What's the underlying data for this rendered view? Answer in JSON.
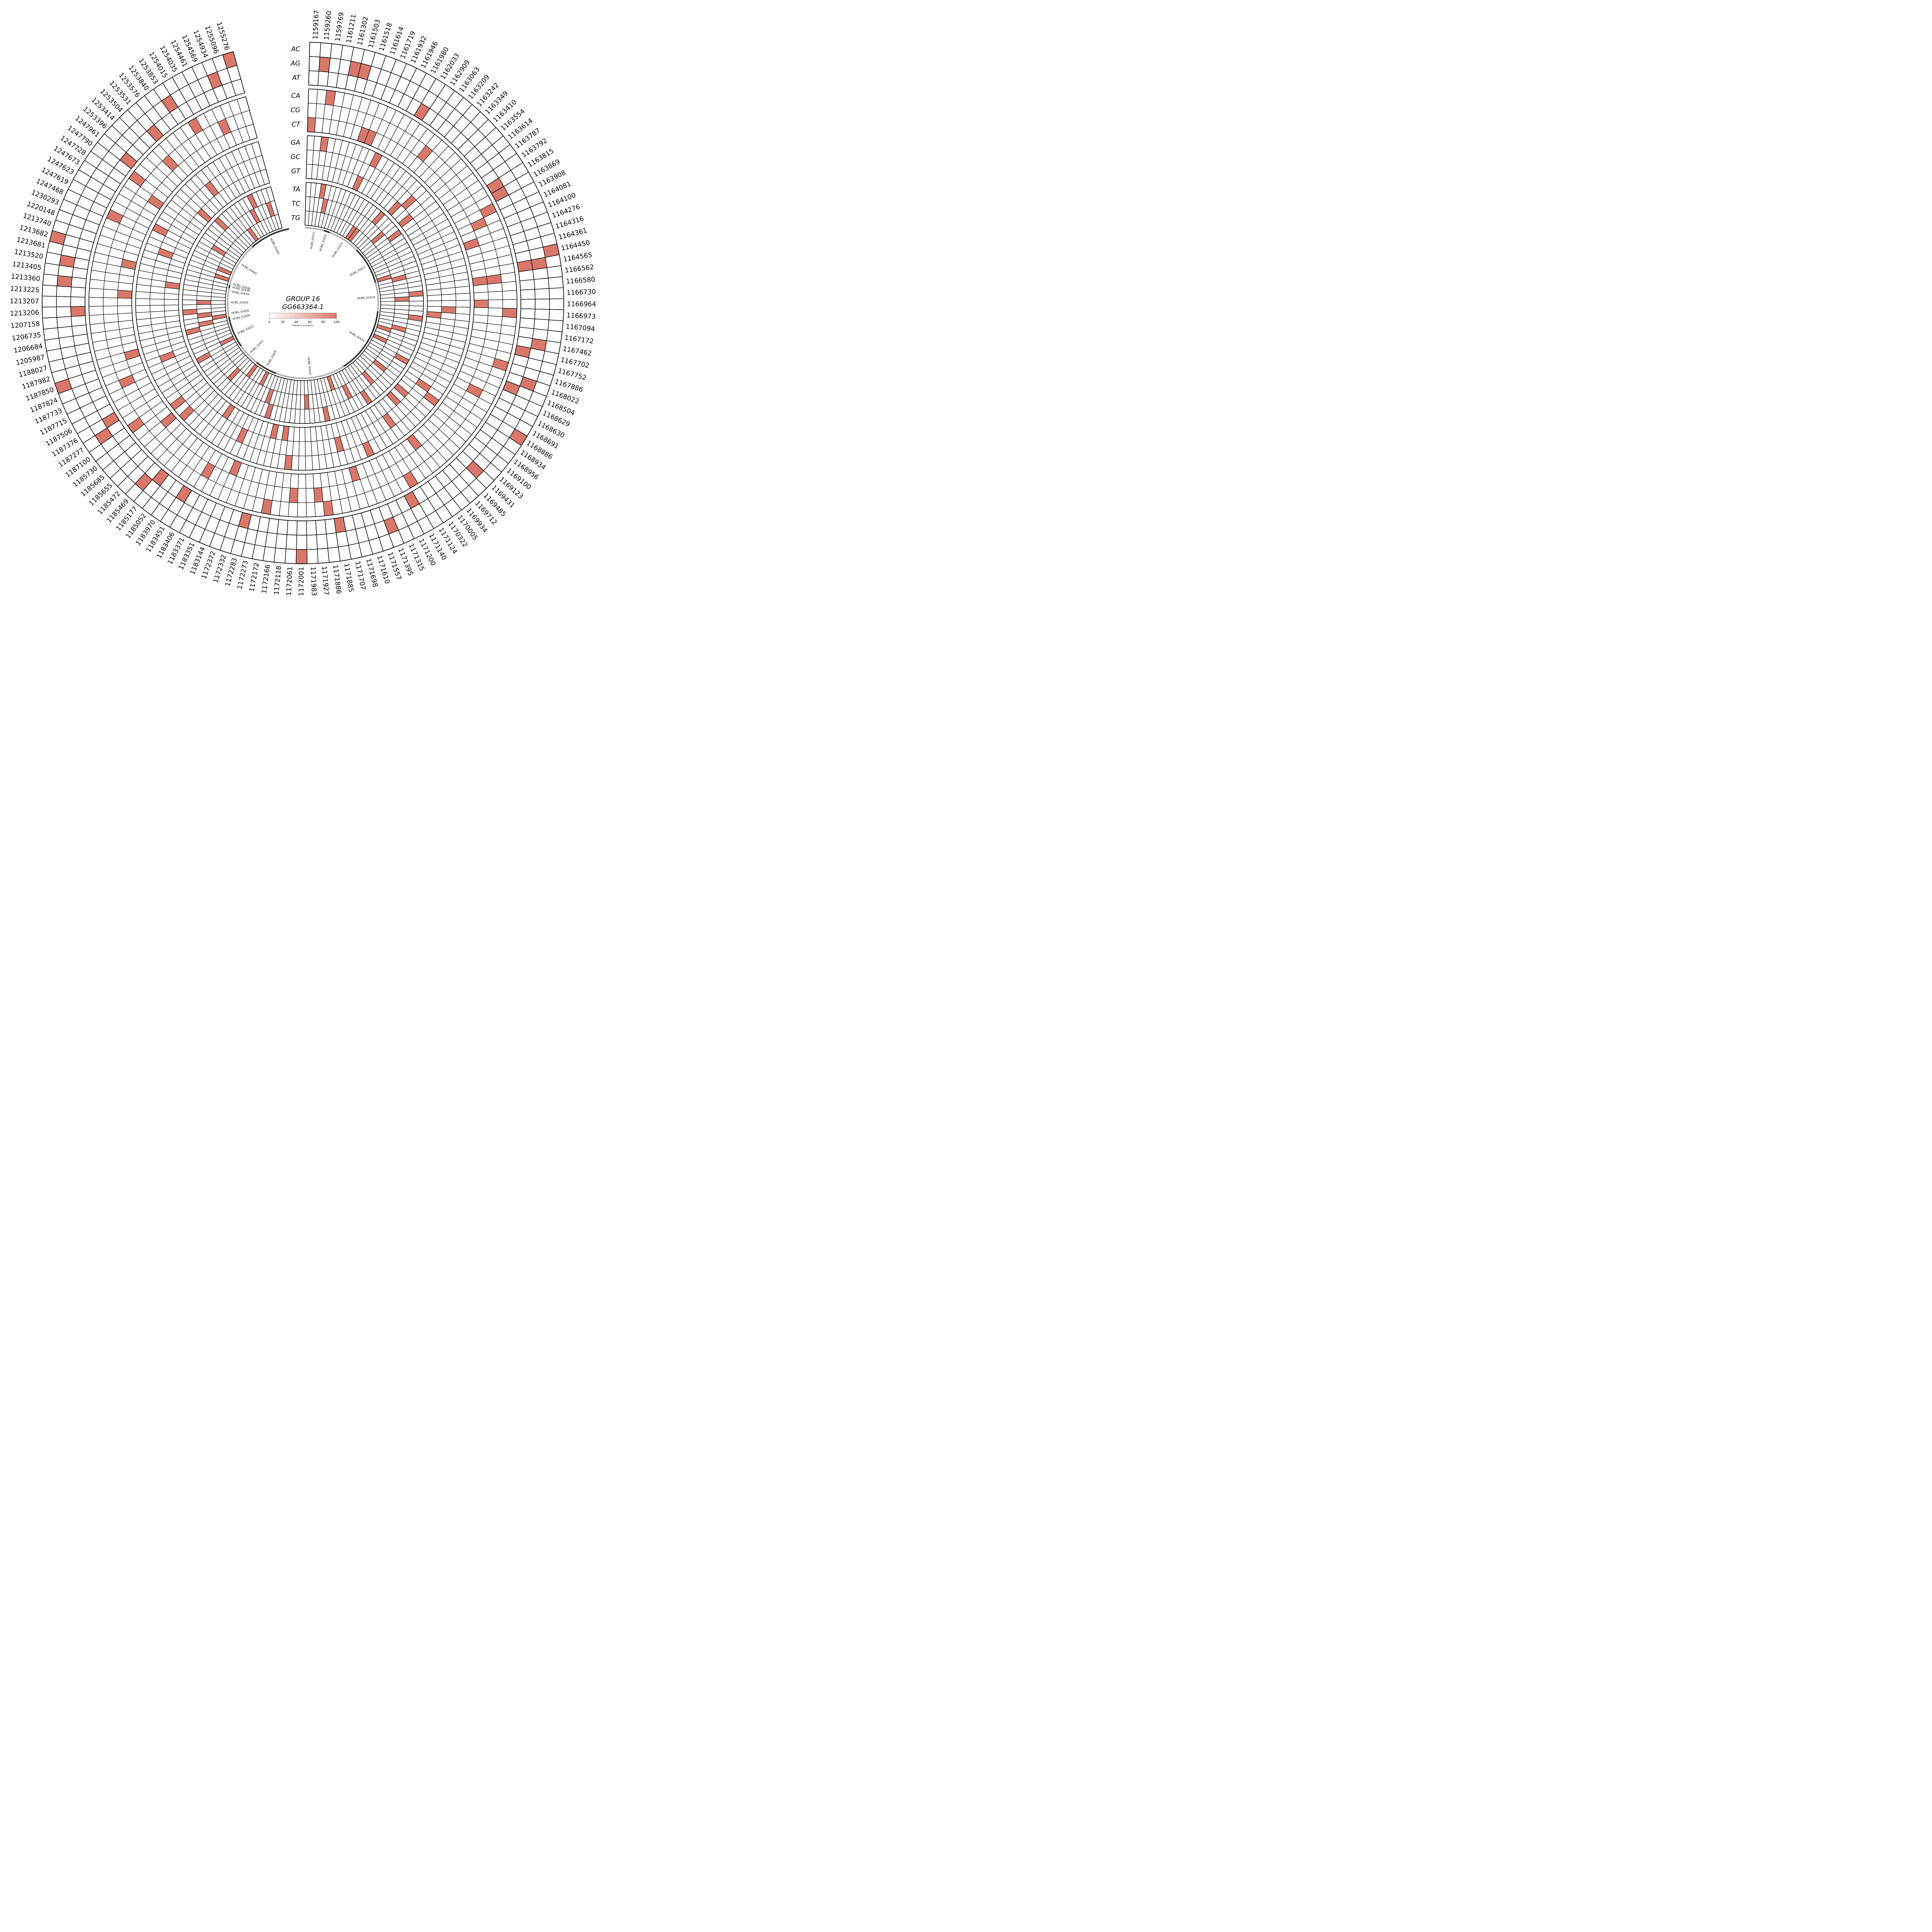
{
  "chart_data": {
    "type": "heatmap",
    "layout": "circular",
    "title": "GROUP 16",
    "subtitle": "GG663364.1",
    "positions": [
      "1159167",
      "1159260",
      "1159769",
      "1161211",
      "1161302",
      "1161503",
      "1161518",
      "1161614",
      "1161719",
      "1161932",
      "1161946",
      "1161980",
      "1162033",
      "1162909",
      "1163063",
      "1163209",
      "1163242",
      "1163349",
      "1163410",
      "1163554",
      "1163614",
      "1163787",
      "1163792",
      "1163815",
      "1163869",
      "1163908",
      "1164081",
      "1164100",
      "1164276",
      "1164316",
      "1164361",
      "1164450",
      "1164565",
      "1166562",
      "1166580",
      "1166730",
      "1166964",
      "1166973",
      "1167094",
      "1167172",
      "1167462",
      "1167702",
      "1167752",
      "1167886",
      "1168022",
      "1168504",
      "1168629",
      "1168630",
      "1168691",
      "1168886",
      "1168934",
      "1168956",
      "1169100",
      "1169123",
      "1169431",
      "1169485",
      "1169712",
      "1169934",
      "1170005",
      "1170322",
      "1171124",
      "1171140",
      "1171200",
      "1171315",
      "1171395",
      "1171557",
      "1171610",
      "1171698",
      "1171707",
      "1171885",
      "1171886",
      "1171927",
      "1171983",
      "1172001",
      "1172061",
      "1172118",
      "1172166",
      "1172172",
      "1172273",
      "1172283",
      "1172332",
      "1172372",
      "1183144",
      "1183351",
      "1183371",
      "1183406",
      "1183451",
      "1183970",
      "1185052",
      "1185177",
      "1185469",
      "1185472",
      "1185655",
      "1185685",
      "1185730",
      "1187100",
      "1187277",
      "1187376",
      "1187506",
      "1187715",
      "1187733",
      "1187824",
      "1187850",
      "1187982",
      "1188027",
      "1205987",
      "1206684",
      "1206735",
      "1207158",
      "1213206",
      "1213207",
      "1213225",
      "1213360",
      "1213405",
      "1213520",
      "1213681",
      "1213682",
      "1213740",
      "1220148",
      "1230293",
      "1247468",
      "1247619",
      "1247623",
      "1247673",
      "1247728",
      "1247790",
      "1247961",
      "1253396",
      "1253414",
      "1253504",
      "1253531",
      "1253576",
      "1253840",
      "1253853",
      "1254015",
      "1254035",
      "1254461",
      "1254569",
      "1254934",
      "1255096",
      "1255276"
    ],
    "substitution_groups": [
      {
        "name": "A",
        "rows": [
          "AC",
          "AG",
          "AT"
        ]
      },
      {
        "name": "C",
        "rows": [
          "CA",
          "CG",
          "CT"
        ]
      },
      {
        "name": "G",
        "rows": [
          "GA",
          "GC",
          "GT"
        ]
      },
      {
        "name": "T",
        "rows": [
          "TA",
          "TC",
          "TG"
        ]
      }
    ],
    "highlighted_cells": [
      [
        "1159167",
        "CT"
      ],
      [
        "1159260",
        "AG"
      ],
      [
        "1159769",
        "CA"
      ],
      [
        "1159769",
        "GA"
      ],
      [
        "1161211",
        "TA"
      ],
      [
        "1161302",
        "TC"
      ],
      [
        "1161302",
        "AG"
      ],
      [
        "1161503",
        "AG"
      ],
      [
        "1161614",
        "CT"
      ],
      [
        "1161719",
        "CT"
      ],
      [
        "1161932",
        "GT"
      ],
      [
        "1161946",
        "GA"
      ],
      [
        "1162033",
        "AT"
      ],
      [
        "1162909",
        "TG"
      ],
      [
        "1163063",
        "TG"
      ],
      [
        "1163209",
        "CG"
      ],
      [
        "1163242",
        "TA"
      ],
      [
        "1163349",
        "GT"
      ],
      [
        "1163410",
        "GC"
      ],
      [
        "1163554",
        "TC"
      ],
      [
        "1163614",
        "GT"
      ],
      [
        "1163787",
        "TA"
      ],
      [
        "1163815",
        "AT"
      ],
      [
        "1163869",
        "AT"
      ],
      [
        "1163908",
        "CA"
      ],
      [
        "1164081",
        "CG"
      ],
      [
        "1164276",
        "CT"
      ],
      [
        "1164316",
        "TG"
      ],
      [
        "1164361",
        "TC"
      ],
      [
        "1164450",
        "AC"
      ],
      [
        "1164565",
        "AG"
      ],
      [
        "1164565",
        "AT"
      ],
      [
        "1166562",
        "CG"
      ],
      [
        "1166562",
        "CT"
      ],
      [
        "1166580",
        "TA"
      ],
      [
        "1166730",
        "TC"
      ],
      [
        "1166964",
        "CT"
      ],
      [
        "1166973",
        "CA"
      ],
      [
        "1166973",
        "GC"
      ],
      [
        "1167094",
        "GT"
      ],
      [
        "1167172",
        "TA"
      ],
      [
        "1167462",
        "AG"
      ],
      [
        "1167702",
        "AT"
      ],
      [
        "1167752",
        "TC"
      ],
      [
        "1167886",
        "CA"
      ],
      [
        "1167886",
        "TG"
      ],
      [
        "1168022",
        "AG"
      ],
      [
        "1168504",
        "AT"
      ],
      [
        "1168629",
        "TG"
      ],
      [
        "1168630",
        "CG"
      ],
      [
        "1168691",
        "TA"
      ],
      [
        "1168886",
        "AC"
      ],
      [
        "1168934",
        "GC"
      ],
      [
        "1168956",
        "GA"
      ],
      [
        "1169100",
        "TC"
      ],
      [
        "1169123",
        "GT"
      ],
      [
        "1169431",
        "AG"
      ],
      [
        "1169485",
        "GT"
      ],
      [
        "1169712",
        "TC"
      ],
      [
        "1169934",
        "CT"
      ],
      [
        "1170005",
        "GC"
      ],
      [
        "1170322",
        "TA"
      ],
      [
        "1171124",
        "CA"
      ],
      [
        "1171140",
        "AT"
      ],
      [
        "1171200",
        "TC"
      ],
      [
        "1171315",
        "GA"
      ],
      [
        "1171395",
        "AG"
      ],
      [
        "1171557",
        "TG"
      ],
      [
        "1171610",
        "CT"
      ],
      [
        "1171698",
        "GC"
      ],
      [
        "1171707",
        "TA"
      ],
      [
        "1171885",
        "AT"
      ],
      [
        "1171886",
        "CA"
      ],
      [
        "1171927",
        "CG"
      ],
      [
        "1171983",
        "TC"
      ],
      [
        "1172001",
        "AC"
      ],
      [
        "1172061",
        "CG"
      ],
      [
        "1172118",
        "GA"
      ],
      [
        "1172166",
        "GT"
      ],
      [
        "1172172",
        "CA"
      ],
      [
        "1172273",
        "GT"
      ],
      [
        "1172283",
        "AT"
      ],
      [
        "1172332",
        "TA"
      ],
      [
        "1172372",
        "TC"
      ],
      [
        "1183144",
        "CT"
      ],
      [
        "1183351",
        "GC"
      ],
      [
        "1183371",
        "TG"
      ],
      [
        "1183406",
        "CG"
      ],
      [
        "1183451",
        "AT"
      ],
      [
        "1183970",
        "GT"
      ],
      [
        "1185052",
        "TG"
      ],
      [
        "1185177",
        "AT"
      ],
      [
        "1185469",
        "AG"
      ],
      [
        "1185472",
        "TC"
      ],
      [
        "1185655",
        "GA"
      ],
      [
        "1185685",
        "CT"
      ],
      [
        "1185730",
        "GA"
      ],
      [
        "1187100",
        "CA"
      ],
      [
        "1187277",
        "AG"
      ],
      [
        "1187376",
        "AT"
      ],
      [
        "1187506",
        "TA"
      ],
      [
        "1187715",
        "TG"
      ],
      [
        "1187733",
        "CG"
      ],
      [
        "1187824",
        "GC"
      ],
      [
        "1187850",
        "AC"
      ],
      [
        "1187982",
        "CT"
      ],
      [
        "1188027",
        "TA"
      ],
      [
        "1205987",
        "TC"
      ],
      [
        "1206684",
        "TG"
      ],
      [
        "1206735",
        "TC"
      ],
      [
        "1207158",
        "TA"
      ],
      [
        "1213206",
        "AT"
      ],
      [
        "1213207",
        "TC"
      ],
      [
        "1213225",
        "CT"
      ],
      [
        "1213360",
        "AG"
      ],
      [
        "1213405",
        "GT"
      ],
      [
        "1213520",
        "AG"
      ],
      [
        "1213681",
        "CT"
      ],
      [
        "1213682",
        "AC"
      ],
      [
        "1213740",
        "TG"
      ],
      [
        "1220148",
        "GC"
      ],
      [
        "1230293",
        "TG"
      ],
      [
        "1247468",
        "CA"
      ],
      [
        "1247619",
        "GA"
      ],
      [
        "1247673",
        "TC"
      ],
      [
        "1247728",
        "CT"
      ],
      [
        "1247790",
        "CA"
      ],
      [
        "1247961",
        "AT"
      ],
      [
        "1253396",
        "GT"
      ],
      [
        "1253414",
        "TA"
      ],
      [
        "1253504",
        "CG"
      ],
      [
        "1253531",
        "AT"
      ],
      [
        "1253576",
        "GC"
      ],
      [
        "1253840",
        "TG"
      ],
      [
        "1253853",
        "AG"
      ],
      [
        "1254015",
        "CA"
      ],
      [
        "1254035",
        "TC"
      ],
      [
        "1254461",
        "TA"
      ],
      [
        "1254569",
        "CG"
      ],
      [
        "1254934",
        "AG"
      ],
      [
        "1255096",
        "TC"
      ],
      [
        "1255276",
        "AC"
      ]
    ],
    "cell_value": 100,
    "colorbar": {
      "label": "Frequency (0 is white)",
      "ticks": [
        0,
        20,
        40,
        60,
        80,
        100
      ],
      "min_color": "#ffffff",
      "max_color": "#d9776a"
    },
    "genes": [
      {
        "name": "HCBG_01611",
        "start_index": 0,
        "end_index": 6,
        "shade": "light"
      },
      {
        "name": "HCBG_01610",
        "start_index": 6,
        "end_index": 8,
        "shade": "dark"
      },
      {
        "name": "HCBG_01612",
        "start_index": 8,
        "end_index": 18,
        "shade": "light"
      },
      {
        "name": "HCBG_01613",
        "start_index": 18,
        "end_index": 30,
        "shade": "dark"
      },
      {
        "name": "HCBG_01614",
        "start_index": 30,
        "end_index": 39,
        "shade": "light"
      },
      {
        "name": "HCBG_01615",
        "start_index": 39,
        "end_index": 60,
        "shade": "dark"
      },
      {
        "name": "HCBG_01616",
        "start_index": 60,
        "end_index": 82,
        "shade": "light"
      },
      {
        "name": "HCBG_01620",
        "start_index": 82,
        "end_index": 89,
        "shade": "dark"
      },
      {
        "name": "HCBG_01621",
        "start_index": 89,
        "end_index": 96,
        "shade": "light"
      },
      {
        "name": "HCBG_01622",
        "start_index": 96,
        "end_index": 104,
        "shade": "dark"
      },
      {
        "name": "HCBG_01628",
        "start_index": 104,
        "end_index": 106,
        "shade": "dark"
      },
      {
        "name": "HCBG_01630",
        "start_index": 106,
        "end_index": 108,
        "shade": "light"
      },
      {
        "name": "HCBG_01632",
        "start_index": 108,
        "end_index": 113,
        "shade": "light"
      },
      {
        "name": "HCBG_01634",
        "start_index": 113,
        "end_index": 115,
        "shade": "light"
      },
      {
        "name": "HCBG_01636",
        "start_index": 115,
        "end_index": 116,
        "shade": "dark"
      },
      {
        "name": "HCBG_01639",
        "start_index": 116,
        "end_index": 117,
        "shade": "light"
      },
      {
        "name": "HCBG_01641",
        "start_index": 117,
        "end_index": 130,
        "shade": "light"
      },
      {
        "name": "HCBG_01643",
        "start_index": 130,
        "end_index": 143,
        "shade": "dark"
      }
    ],
    "colors": {
      "hit": "#d9776a",
      "gene_dark": "#333333",
      "gene_light": "#b3b3b3",
      "grid": "#000000"
    }
  }
}
